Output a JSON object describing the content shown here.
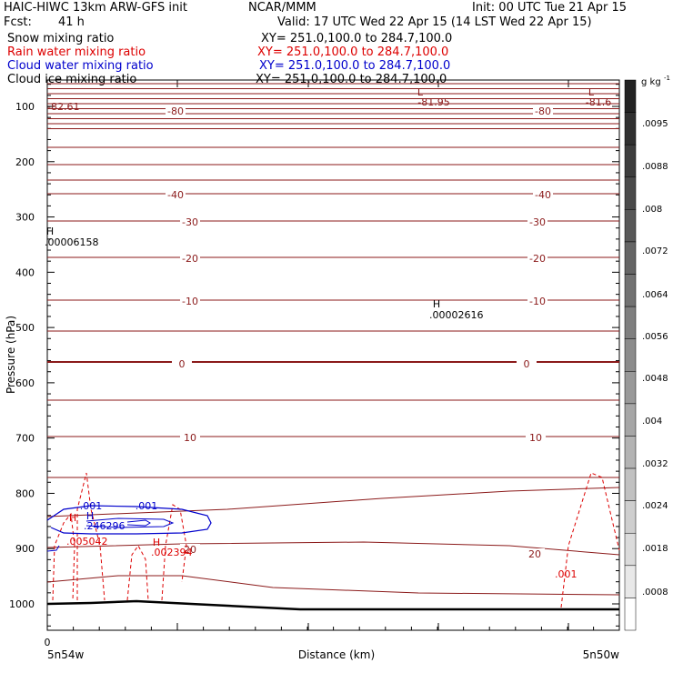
{
  "header": {
    "title_left": "HAIC-HIWC 13km ARW-GFS init",
    "org": "NCAR/MMM",
    "init": "Init: 00 UTC Tue 21 Apr 15",
    "fcst_label": "Fcst:",
    "fcst_value": "41 h",
    "valid": "Valid: 17 UTC Wed 22 Apr 15 (14 LST Wed 22 Apr 15)"
  },
  "fields": [
    {
      "name": "Snow mixing ratio",
      "xy": "XY= 251.0,100.0 to 284.7,100.0",
      "color": "#000000"
    },
    {
      "name": "Rain water mixing ratio",
      "xy": "XY= 251.0,100.0 to 284.7,100.0",
      "color": "#dd0000"
    },
    {
      "name": "Cloud water mixing ratio",
      "xy": "XY= 251.0,100.0 to 284.7,100.0",
      "color": "#0000cc"
    },
    {
      "name": "Cloud ice mixing ratio",
      "xy": "XY= 251.0,100.0 to 284.7,100.0",
      "color": "#000000"
    }
  ],
  "chart_data": {
    "type": "cross-section",
    "ylabel": "Pressure (hPa)",
    "xlabel": "Distance (km)",
    "y_ticks": [
      "100",
      "200",
      "300",
      "400",
      "500",
      "600",
      "700",
      "800",
      "900",
      "1000"
    ],
    "ylim": [
      50,
      1050
    ],
    "x_tick_label": "0",
    "x_end_labels": [
      "5n54w",
      "5n50w"
    ],
    "colorbar": {
      "unit": "g kg",
      "unit_exp": "-1",
      "labels": [
        ".0095",
        ".0088",
        ".008",
        ".0072",
        ".0064",
        ".0056",
        ".0048",
        ".004",
        ".0032",
        ".0024",
        ".0018",
        ".0008"
      ]
    },
    "temperature_labels": [
      "-80",
      "-80",
      "-40",
      "-40",
      "-30",
      "-30",
      "-20",
      "-20",
      "-10",
      "-10",
      "0",
      "0",
      "10",
      "10",
      "20",
      "20"
    ],
    "annotations": [
      {
        "text": "L",
        "color": "#8b1a1a"
      },
      {
        "text": "-81.95",
        "color": "#8b1a1a"
      },
      {
        "text": "L",
        "color": "#8b1a1a"
      },
      {
        "text": "-81.6",
        "color": "#8b1a1a"
      },
      {
        "text": "-82.61",
        "color": "#8b1a1a"
      },
      {
        "text": "H",
        "color": "#000000"
      },
      {
        "text": ".00006158",
        "color": "#000000"
      },
      {
        "text": "H",
        "color": "#000000"
      },
      {
        "text": ".00002616",
        "color": "#000000"
      },
      {
        "text": ".001",
        "color": "#0000cc"
      },
      {
        "text": ".001",
        "color": "#0000cc"
      },
      {
        "text": "H",
        "color": "#0000cc"
      },
      {
        "text": ".246296",
        "color": "#0000cc"
      },
      {
        "text": "H",
        "color": "#dd0000"
      },
      {
        "text": ".005042",
        "color": "#dd0000"
      },
      {
        "text": "H",
        "color": "#dd0000"
      },
      {
        "text": ".002394",
        "color": "#dd0000"
      },
      {
        "text": ".001",
        "color": "#dd0000"
      }
    ]
  }
}
